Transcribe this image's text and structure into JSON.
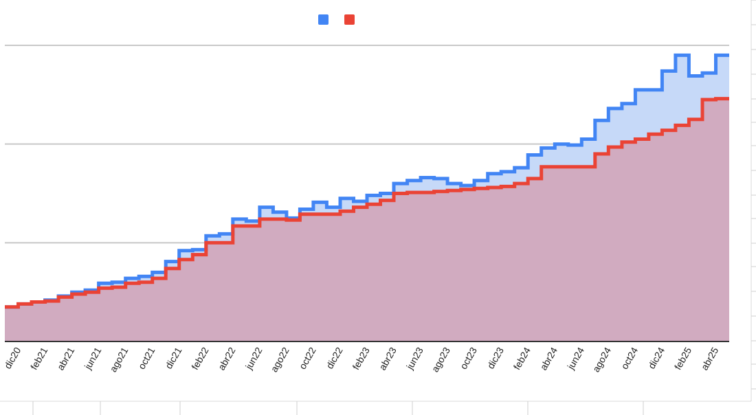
{
  "chart_data": {
    "type": "area",
    "title": "",
    "xlabel": "",
    "ylabel": "",
    "step": true,
    "grid": true,
    "legend_position": "top-center",
    "ylim": [
      0,
      300
    ],
    "yticks": [
      0,
      100,
      200,
      300
    ],
    "x": [
      "dic20",
      "ene21",
      "feb21",
      "mar21",
      "abr21",
      "may21",
      "jun21",
      "jul21",
      "ago21",
      "sep21",
      "oct21",
      "nov21",
      "dic21",
      "ene22",
      "feb22",
      "mar22",
      "abr22",
      "may22",
      "jun22",
      "jul22",
      "ago22",
      "sep22",
      "oct22",
      "nov22",
      "dic22",
      "ene23",
      "feb23",
      "mar23",
      "abr23",
      "may23",
      "jun23",
      "jul23",
      "ago23",
      "sep23",
      "oct23",
      "nov23",
      "dic23",
      "ene24",
      "feb24",
      "mar24",
      "abr24",
      "may24",
      "jun24",
      "jul24",
      "ago24",
      "sep24",
      "oct24",
      "nov24",
      "dic24",
      "ene25",
      "feb25",
      "mar25",
      "abr25",
      "may25"
    ],
    "x_tick_labels": [
      "dic20",
      "feb21",
      "abr21",
      "jun21",
      "ago21",
      "oct21",
      "dic21",
      "feb22",
      "abr22",
      "jun22",
      "ago22",
      "oct22",
      "dic22",
      "feb23",
      "abr23",
      "jun23",
      "ago23",
      "oct23",
      "dic23",
      "feb24",
      "abr24",
      "jun24",
      "ago24",
      "oct24",
      "dic24",
      "feb25",
      "abr25"
    ],
    "series": [
      {
        "color": "#4285f4",
        "fill": "#c6d9f8",
        "values": [
          35,
          38,
          40,
          42,
          46,
          50,
          52,
          59,
          60,
          64,
          66,
          70,
          81,
          92,
          93,
          107,
          109,
          124,
          122,
          136,
          131,
          125,
          134,
          141,
          136,
          145,
          142,
          148,
          150,
          160,
          163,
          166,
          165,
          160,
          158,
          163,
          170,
          172,
          176,
          189,
          196,
          200,
          199,
          205,
          224,
          236,
          241,
          255,
          255,
          274,
          290,
          269,
          272,
          290
        ]
      },
      {
        "color": "#ea4335",
        "fill": "#d1abc0",
        "values": [
          35,
          38,
          40,
          41,
          45,
          48,
          50,
          54,
          55,
          59,
          60,
          64,
          74,
          83,
          88,
          100,
          100,
          117,
          117,
          124,
          124,
          123,
          129,
          129,
          129,
          132,
          136,
          139,
          143,
          150,
          151,
          151,
          152,
          153,
          154,
          155,
          156,
          157,
          160,
          165,
          177,
          177,
          177,
          177,
          190,
          197,
          202,
          205,
          210,
          214,
          219,
          225,
          245,
          246
        ]
      }
    ]
  }
}
